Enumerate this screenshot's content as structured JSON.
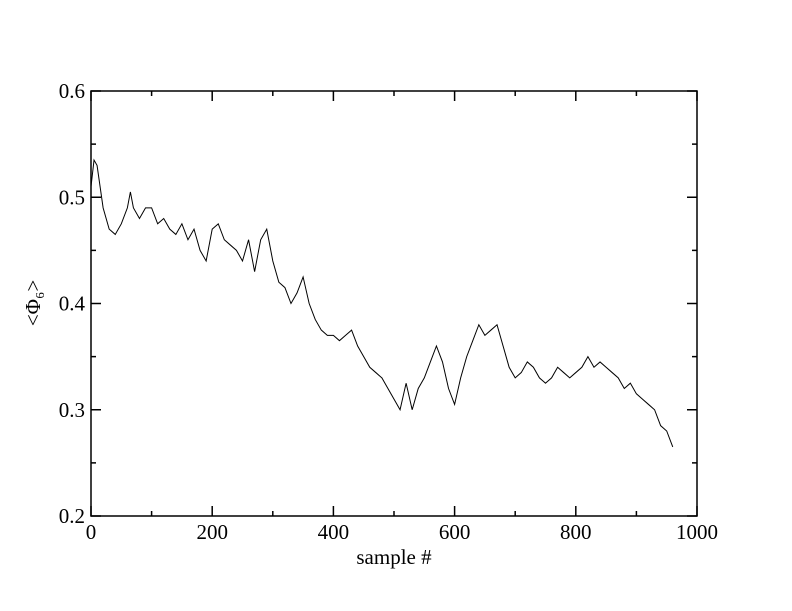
{
  "chart_data": {
    "type": "line",
    "xlabel": "sample #",
    "ylabel": "<Φ₆>",
    "x": [
      0,
      5,
      10,
      20,
      30,
      40,
      50,
      60,
      65,
      70,
      80,
      90,
      100,
      110,
      120,
      130,
      140,
      150,
      160,
      170,
      180,
      190,
      200,
      210,
      220,
      230,
      240,
      250,
      260,
      270,
      280,
      290,
      300,
      310,
      320,
      330,
      340,
      350,
      360,
      370,
      380,
      390,
      400,
      410,
      420,
      430,
      440,
      450,
      460,
      470,
      480,
      490,
      500,
      510,
      520,
      530,
      540,
      550,
      560,
      570,
      580,
      590,
      600,
      610,
      620,
      630,
      640,
      650,
      660,
      670,
      680,
      690,
      700,
      710,
      720,
      730,
      740,
      750,
      760,
      770,
      780,
      790,
      800,
      810,
      820,
      830,
      840,
      850,
      860,
      870,
      880,
      890,
      900,
      910,
      920,
      930,
      940,
      950,
      960
    ],
    "series": [
      {
        "color": "#000000",
        "values": [
          0.51,
          0.535,
          0.53,
          0.49,
          0.47,
          0.465,
          0.475,
          0.49,
          0.505,
          0.49,
          0.48,
          0.49,
          0.49,
          0.475,
          0.48,
          0.47,
          0.465,
          0.475,
          0.46,
          0.47,
          0.45,
          0.44,
          0.47,
          0.475,
          0.46,
          0.455,
          0.45,
          0.44,
          0.46,
          0.43,
          0.46,
          0.47,
          0.44,
          0.42,
          0.415,
          0.4,
          0.41,
          0.425,
          0.4,
          0.385,
          0.375,
          0.37,
          0.37,
          0.365,
          0.37,
          0.375,
          0.36,
          0.35,
          0.34,
          0.335,
          0.33,
          0.32,
          0.31,
          0.3,
          0.325,
          0.3,
          0.32,
          0.33,
          0.345,
          0.36,
          0.345,
          0.32,
          0.305,
          0.33,
          0.35,
          0.365,
          0.38,
          0.37,
          0.375,
          0.38,
          0.36,
          0.34,
          0.33,
          0.335,
          0.345,
          0.34,
          0.33,
          0.325,
          0.33,
          0.34,
          0.335,
          0.33,
          0.335,
          0.34,
          0.35,
          0.34,
          0.345,
          0.34,
          0.335,
          0.33,
          0.32,
          0.325,
          0.315,
          0.31,
          0.305,
          0.3,
          0.285,
          0.28,
          0.265
        ]
      }
    ],
    "xlim": [
      0,
      1000
    ],
    "xticks": [
      0,
      200,
      400,
      600,
      800,
      1000
    ],
    "xminor_ticks": [
      100,
      300,
      500,
      700,
      900
    ],
    "ylim": [
      0.2,
      0.6
    ],
    "yticks": [
      0.2,
      0.3,
      0.4,
      0.5,
      0.6
    ],
    "yminor_ticks": [
      0.25,
      0.35,
      0.45,
      0.55
    ],
    "grid": false
  }
}
